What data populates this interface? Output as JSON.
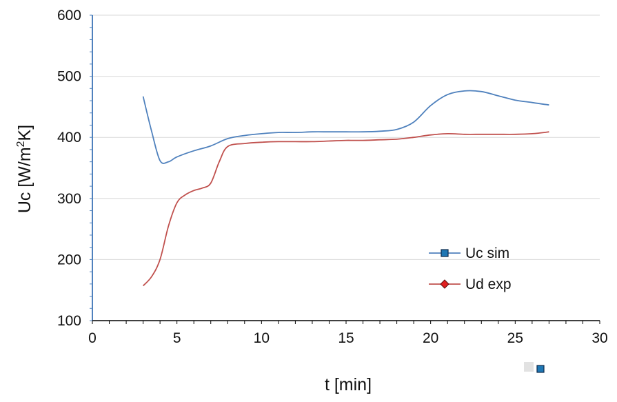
{
  "chart_data": {
    "type": "line",
    "title": "",
    "xlabel": "t [min]",
    "ylabel_main": "Uc [W/m",
    "ylabel_sup": "2",
    "ylabel_tail": "K]",
    "xlim": [
      0,
      30
    ],
    "ylim": [
      100,
      600
    ],
    "x_ticks": [
      0,
      5,
      10,
      15,
      20,
      25,
      30
    ],
    "y_ticks": [
      100,
      200,
      300,
      400,
      500,
      600
    ],
    "x_minor_step": 1,
    "y_minor_step": 20,
    "grid": "horizontal major",
    "legend_position": "lower-right",
    "series": [
      {
        "name": "Uc sim",
        "color": "#4F81BD",
        "marker": "square",
        "marker_color": "#1F77B4",
        "x": [
          3,
          3.5,
          4,
          4.5,
          5,
          6,
          7,
          8,
          9,
          10,
          11,
          12,
          13,
          14,
          15,
          16,
          17,
          18,
          19,
          20,
          21,
          22,
          23,
          24,
          25,
          26,
          27
        ],
        "y": [
          467,
          410,
          362,
          360,
          368,
          378,
          386,
          398,
          403,
          406,
          408,
          408,
          409,
          409,
          409,
          409,
          410,
          413,
          425,
          452,
          470,
          476,
          475,
          468,
          461,
          457,
          453
        ]
      },
      {
        "name": "Ud exp",
        "color": "#C0504D",
        "marker": "diamond",
        "marker_color": "#E02020",
        "x": [
          3,
          3.5,
          4,
          4.5,
          5,
          5.5,
          6,
          6.5,
          7,
          7.5,
          8,
          9,
          10,
          11,
          12,
          13,
          14,
          15,
          16,
          17,
          18,
          19,
          20,
          21,
          22,
          23,
          24,
          25,
          26,
          27
        ],
        "y": [
          157,
          172,
          200,
          255,
          293,
          306,
          313,
          317,
          325,
          360,
          385,
          390,
          392,
          393,
          393,
          393,
          394,
          395,
          395,
          396,
          397,
          400,
          404,
          406,
          405,
          405,
          405,
          405,
          406,
          409
        ]
      }
    ]
  }
}
